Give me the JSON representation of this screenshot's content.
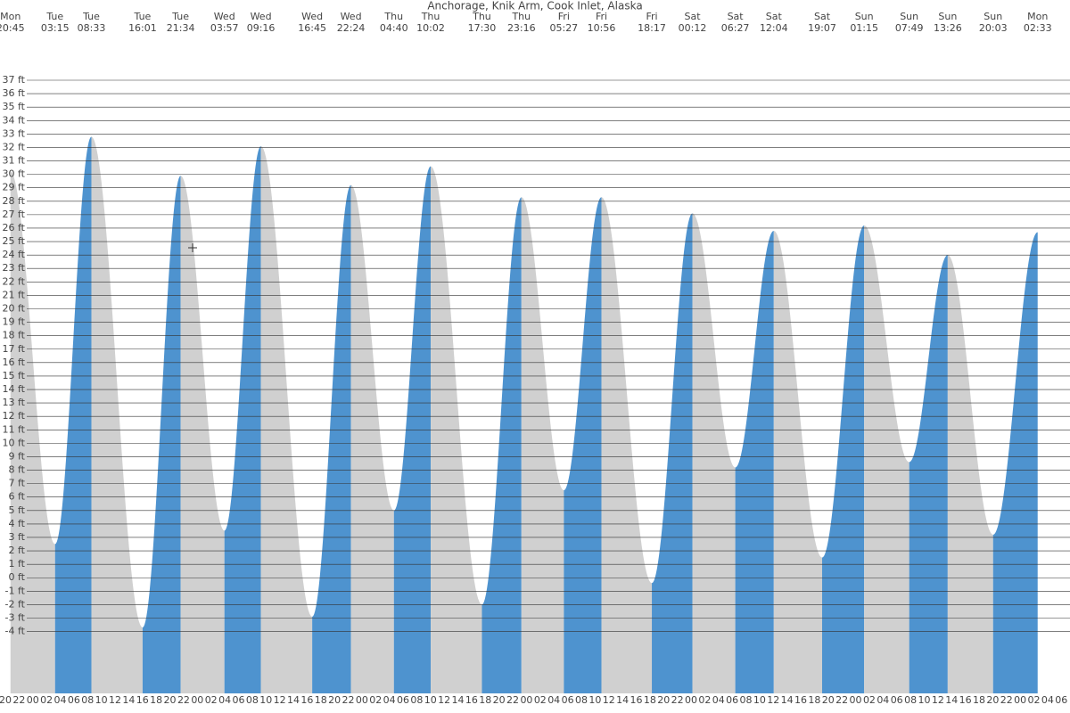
{
  "chart_data": {
    "type": "tide",
    "title": "Anchorage, Knik Arm, Cook Inlet, Alaska",
    "days": [
      "Mon",
      "Tue",
      "Tue",
      "Tue",
      "Tue",
      "Wed",
      "Wed",
      "Wed",
      "Wed",
      "Thu",
      "Thu",
      "Thu",
      "Thu",
      "Fri",
      "Fri",
      "Fri",
      "Sat",
      "Sat",
      "Sat",
      "Sat",
      "Sun",
      "Sun",
      "Sun",
      "Sun",
      "Mon"
    ],
    "times": [
      "20:45",
      "03:15",
      "08:33",
      "16:01",
      "21:34",
      "03:57",
      "09:16",
      "16:45",
      "22:24",
      "04:40",
      "10:02",
      "17:30",
      "23:16",
      "05:27",
      "10:56",
      "18:17",
      "00:12",
      "06:27",
      "12:04",
      "19:07",
      "01:15",
      "07:49",
      "13:26",
      "20:03",
      "02:33"
    ],
    "values": [
      30.2,
      2.5,
      32.8,
      -3.7,
      29.9,
      3.5,
      32.1,
      -2.9,
      29.2,
      5.0,
      30.6,
      -2.0,
      28.3,
      6.5,
      28.3,
      -0.4,
      27.1,
      8.2,
      25.8,
      1.5,
      26.2,
      8.6,
      24.0,
      3.2,
      25.7
    ],
    "rising_color": "#4e93cf",
    "falling_color": "#d0d0d0",
    "ylim": [
      -8.6,
      37
    ],
    "yticks": [
      {
        "value": 37,
        "label": "37 ft"
      },
      {
        "value": 36,
        "label": "36 ft"
      },
      {
        "value": 35,
        "label": "35 ft"
      },
      {
        "value": 34,
        "label": "34 ft"
      },
      {
        "value": 33,
        "label": "33 ft"
      },
      {
        "value": 32,
        "label": "32 ft"
      },
      {
        "value": 31,
        "label": "31 ft"
      },
      {
        "value": 30,
        "label": "30 ft"
      },
      {
        "value": 29,
        "label": "29 ft"
      },
      {
        "value": 28,
        "label": "28 ft"
      },
      {
        "value": 27,
        "label": "27 ft"
      },
      {
        "value": 26,
        "label": "26 ft"
      },
      {
        "value": 25,
        "label": "25 ft"
      },
      {
        "value": 24,
        "label": "24 ft"
      },
      {
        "value": 23,
        "label": "23 ft"
      },
      {
        "value": 22,
        "label": "22 ft"
      },
      {
        "value": 21,
        "label": "21 ft"
      },
      {
        "value": 20,
        "label": "20 ft"
      },
      {
        "value": 19,
        "label": "19 ft"
      },
      {
        "value": 18,
        "label": "18 ft"
      },
      {
        "value": 17,
        "label": "17 ft"
      },
      {
        "value": 16,
        "label": "16 ft"
      },
      {
        "value": 15,
        "label": "15 ft"
      },
      {
        "value": 14,
        "label": "14 ft"
      },
      {
        "value": 13,
        "label": "13 ft"
      },
      {
        "value": 12,
        "label": "12 ft"
      },
      {
        "value": 11,
        "label": "11 ft"
      },
      {
        "value": 10,
        "label": "10 ft"
      },
      {
        "value": 9,
        "label": "9 ft"
      },
      {
        "value": 8,
        "label": "8 ft"
      },
      {
        "value": 7,
        "label": "7 ft"
      },
      {
        "value": 6,
        "label": "6 ft"
      },
      {
        "value": 5,
        "label": "5 ft"
      },
      {
        "value": 4,
        "label": "4 ft"
      },
      {
        "value": 3,
        "label": "3 ft"
      },
      {
        "value": 2,
        "label": "2 ft"
      },
      {
        "value": 1,
        "label": "1 ft"
      },
      {
        "value": 0,
        "label": "0 ft"
      },
      {
        "value": -1,
        "label": "-1 ft"
      },
      {
        "value": -2,
        "label": "-2 ft"
      },
      {
        "value": -3,
        "label": "-3 ft"
      },
      {
        "value": -4,
        "label": "-4 ft"
      }
    ],
    "grid": true,
    "hour_labels": [
      "20",
      "22",
      "00",
      "02",
      "04",
      "06",
      "08",
      "10",
      "12",
      "14",
      "16",
      "18",
      "20",
      "22",
      "00",
      "02",
      "04",
      "06",
      "08",
      "10",
      "12",
      "14",
      "16",
      "18",
      "20",
      "22",
      "00",
      "02",
      "04",
      "06",
      "08",
      "10",
      "12",
      "14",
      "16",
      "18",
      "20",
      "22",
      "00",
      "02",
      "04",
      "06",
      "08",
      "10",
      "12",
      "14",
      "16",
      "18",
      "20",
      "22",
      "00",
      "02",
      "04",
      "06",
      "08",
      "10",
      "12",
      "14",
      "16",
      "18",
      "20",
      "22",
      "00",
      "02",
      "04",
      "06",
      "08",
      "10",
      "12",
      "14",
      "16",
      "18",
      "20",
      "22",
      "00",
      "02",
      "04",
      "06"
    ]
  }
}
